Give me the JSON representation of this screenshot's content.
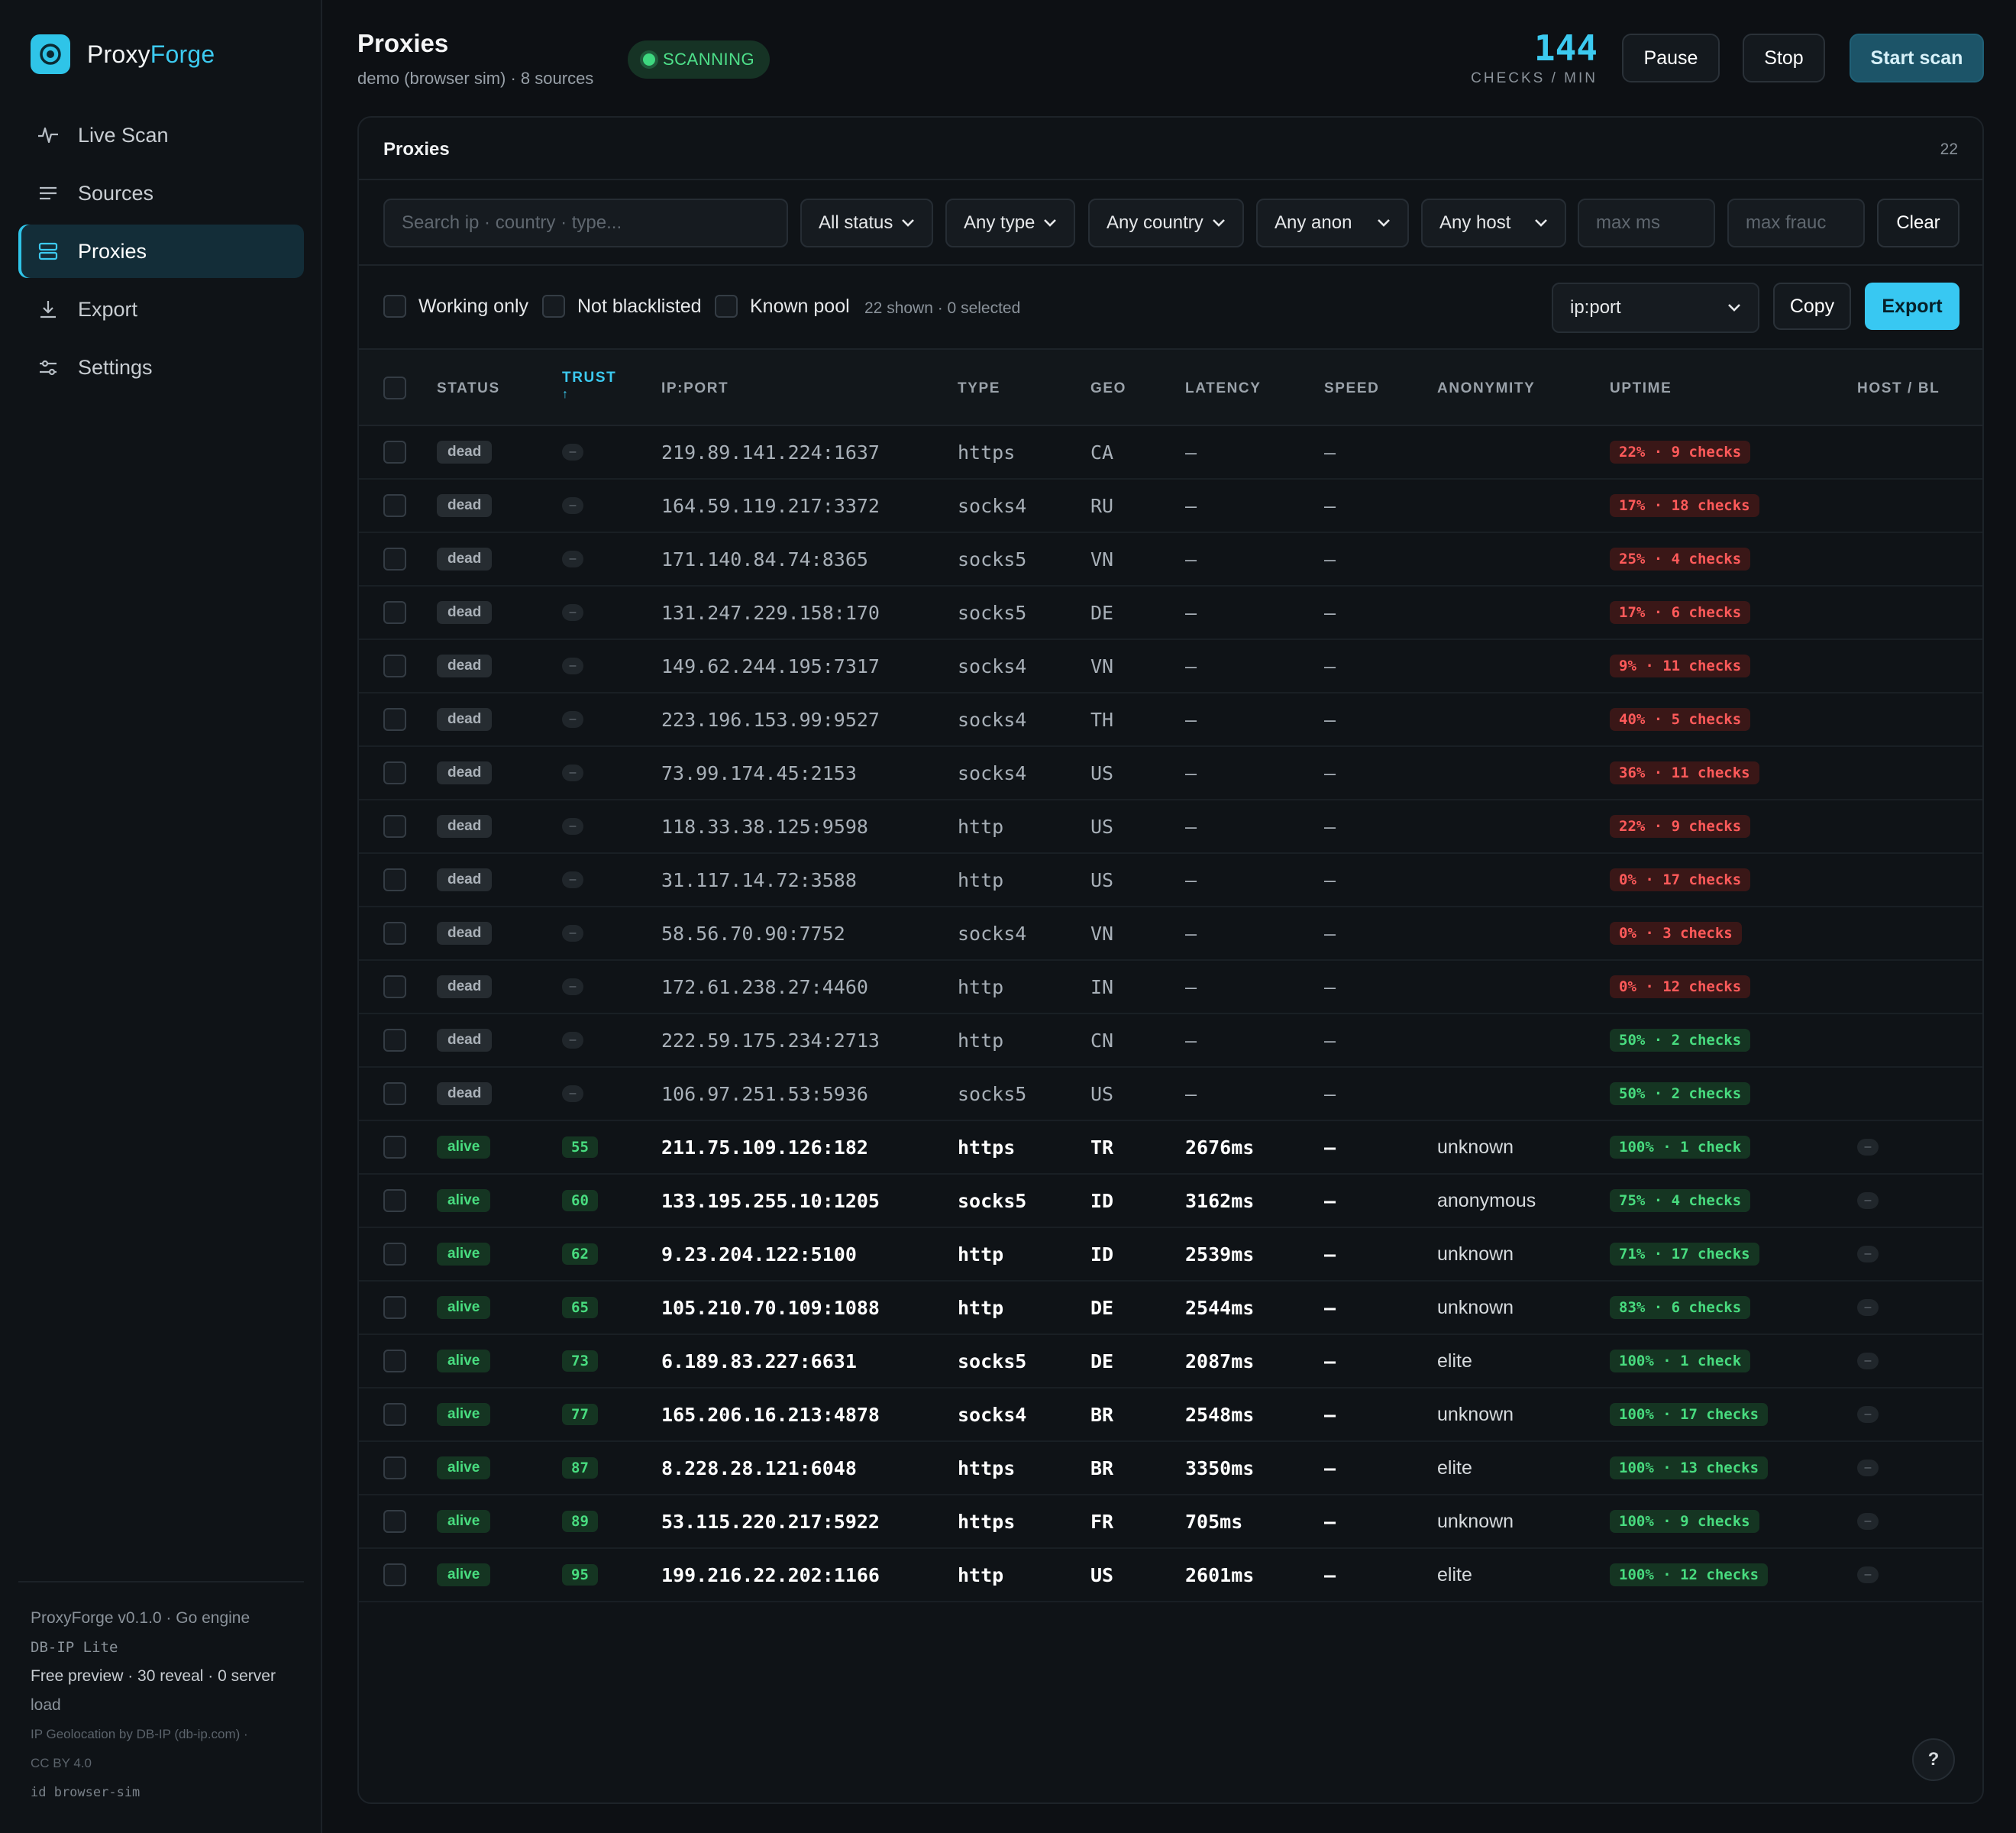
{
  "brand": {
    "name_prefix": "Proxy",
    "name_accent": "Forge"
  },
  "nav": [
    {
      "label": "Live Scan",
      "icon": "pulse-icon",
      "active": false
    },
    {
      "label": "Sources",
      "icon": "list-icon",
      "active": false
    },
    {
      "label": "Proxies",
      "icon": "server-icon",
      "active": true
    },
    {
      "label": "Export",
      "icon": "download-icon",
      "active": false
    },
    {
      "label": "Settings",
      "icon": "sliders-icon",
      "active": false
    }
  ],
  "footer": {
    "version": "ProxyForge v0.1.0 · Go engine",
    "db": "DB-IP Lite",
    "preview": "Free preview · 30 reveal · 0 server",
    "preview_cont": "load",
    "attribution": "IP Geolocation by DB-IP (db-ip.com) ·",
    "license": "CC BY 4.0",
    "id": "id browser-sim"
  },
  "header": {
    "title": "Proxies",
    "subtitle": "demo (browser sim) · 8 sources",
    "status": "SCANNING",
    "rate_value": "144",
    "rate_label": "CHECKS / MIN",
    "pause": "Pause",
    "stop": "Stop",
    "start": "Start scan"
  },
  "panel": {
    "title": "Proxies",
    "count": "22"
  },
  "filters": {
    "search_placeholder": "Search ip · country · type...",
    "status": "All status",
    "type": "Any type",
    "country": "Any country",
    "anon": "Any anon",
    "host": "Any host",
    "max_ms_placeholder": "max ms",
    "max_fraud_placeholder": "max frauc",
    "clear": "Clear"
  },
  "options": {
    "working_only": "Working only",
    "not_blacklisted": "Not blacklisted",
    "known_pool": "Known pool",
    "summary": "22 shown · 0 selected",
    "format": "ip:port",
    "copy": "Copy",
    "export": "Export"
  },
  "columns": {
    "status": "STATUS",
    "trust": "TRUST",
    "sort_arrow": "↑",
    "ip": "IP:PORT",
    "type": "TYPE",
    "geo": "GEO",
    "latency": "LATENCY",
    "speed": "SPEED",
    "anonymity": "ANONYMITY",
    "uptime": "UPTIME",
    "host": "HOST / BL"
  },
  "rows": [
    {
      "status": "dead",
      "trust": "–",
      "ip": "219.89.141.224:1637",
      "type": "https",
      "geo": "CA",
      "latency": "–",
      "speed": "–",
      "anon": "",
      "uptime": "22% · 9 checks",
      "up_good": false,
      "host": ""
    },
    {
      "status": "dead",
      "trust": "–",
      "ip": "164.59.119.217:3372",
      "type": "socks4",
      "geo": "RU",
      "latency": "–",
      "speed": "–",
      "anon": "",
      "uptime": "17% · 18 checks",
      "up_good": false,
      "host": ""
    },
    {
      "status": "dead",
      "trust": "–",
      "ip": "171.140.84.74:8365",
      "type": "socks5",
      "geo": "VN",
      "latency": "–",
      "speed": "–",
      "anon": "",
      "uptime": "25% · 4 checks",
      "up_good": false,
      "host": ""
    },
    {
      "status": "dead",
      "trust": "–",
      "ip": "131.247.229.158:170",
      "type": "socks5",
      "geo": "DE",
      "latency": "–",
      "speed": "–",
      "anon": "",
      "uptime": "17% · 6 checks",
      "up_good": false,
      "host": ""
    },
    {
      "status": "dead",
      "trust": "–",
      "ip": "149.62.244.195:7317",
      "type": "socks4",
      "geo": "VN",
      "latency": "–",
      "speed": "–",
      "anon": "",
      "uptime": "9% · 11 checks",
      "up_good": false,
      "host": ""
    },
    {
      "status": "dead",
      "trust": "–",
      "ip": "223.196.153.99:9527",
      "type": "socks4",
      "geo": "TH",
      "latency": "–",
      "speed": "–",
      "anon": "",
      "uptime": "40% · 5 checks",
      "up_good": false,
      "host": ""
    },
    {
      "status": "dead",
      "trust": "–",
      "ip": "73.99.174.45:2153",
      "type": "socks4",
      "geo": "US",
      "latency": "–",
      "speed": "–",
      "anon": "",
      "uptime": "36% · 11 checks",
      "up_good": false,
      "host": ""
    },
    {
      "status": "dead",
      "trust": "–",
      "ip": "118.33.38.125:9598",
      "type": "http",
      "geo": "US",
      "latency": "–",
      "speed": "–",
      "anon": "",
      "uptime": "22% · 9 checks",
      "up_good": false,
      "host": ""
    },
    {
      "status": "dead",
      "trust": "–",
      "ip": "31.117.14.72:3588",
      "type": "http",
      "geo": "US",
      "latency": "–",
      "speed": "–",
      "anon": "",
      "uptime": "0% · 17 checks",
      "up_good": false,
      "host": ""
    },
    {
      "status": "dead",
      "trust": "–",
      "ip": "58.56.70.90:7752",
      "type": "socks4",
      "geo": "VN",
      "latency": "–",
      "speed": "–",
      "anon": "",
      "uptime": "0% · 3 checks",
      "up_good": false,
      "host": ""
    },
    {
      "status": "dead",
      "trust": "–",
      "ip": "172.61.238.27:4460",
      "type": "http",
      "geo": "IN",
      "latency": "–",
      "speed": "–",
      "anon": "",
      "uptime": "0% · 12 checks",
      "up_good": false,
      "host": ""
    },
    {
      "status": "dead",
      "trust": "–",
      "ip": "222.59.175.234:2713",
      "type": "http",
      "geo": "CN",
      "latency": "–",
      "speed": "–",
      "anon": "",
      "uptime": "50% · 2 checks",
      "up_good": true,
      "host": ""
    },
    {
      "status": "dead",
      "trust": "–",
      "ip": "106.97.251.53:5936",
      "type": "socks5",
      "geo": "US",
      "latency": "–",
      "speed": "–",
      "anon": "",
      "uptime": "50% · 2 checks",
      "up_good": true,
      "host": ""
    },
    {
      "status": "alive",
      "trust": "55",
      "ip": "211.75.109.126:182",
      "type": "https",
      "geo": "TR",
      "latency": "2676ms",
      "speed": "–",
      "anon": "unknown",
      "uptime": "100% · 1 check",
      "up_good": true,
      "host": "–"
    },
    {
      "status": "alive",
      "trust": "60",
      "ip": "133.195.255.10:1205",
      "type": "socks5",
      "geo": "ID",
      "latency": "3162ms",
      "speed": "–",
      "anon": "anonymous",
      "uptime": "75% · 4 checks",
      "up_good": true,
      "host": "–"
    },
    {
      "status": "alive",
      "trust": "62",
      "ip": "9.23.204.122:5100",
      "type": "http",
      "geo": "ID",
      "latency": "2539ms",
      "speed": "–",
      "anon": "unknown",
      "uptime": "71% · 17 checks",
      "up_good": true,
      "host": "–"
    },
    {
      "status": "alive",
      "trust": "65",
      "ip": "105.210.70.109:1088",
      "type": "http",
      "geo": "DE",
      "latency": "2544ms",
      "speed": "–",
      "anon": "unknown",
      "uptime": "83% · 6 checks",
      "up_good": true,
      "host": "–"
    },
    {
      "status": "alive",
      "trust": "73",
      "ip": "6.189.83.227:6631",
      "type": "socks5",
      "geo": "DE",
      "latency": "2087ms",
      "speed": "–",
      "anon": "elite",
      "uptime": "100% · 1 check",
      "up_good": true,
      "host": "–"
    },
    {
      "status": "alive",
      "trust": "77",
      "ip": "165.206.16.213:4878",
      "type": "socks4",
      "geo": "BR",
      "latency": "2548ms",
      "speed": "–",
      "anon": "unknown",
      "uptime": "100% · 17 checks",
      "up_good": true,
      "host": "–"
    },
    {
      "status": "alive",
      "trust": "87",
      "ip": "8.228.28.121:6048",
      "type": "https",
      "geo": "BR",
      "latency": "3350ms",
      "speed": "–",
      "anon": "elite",
      "uptime": "100% · 13 checks",
      "up_good": true,
      "host": "–"
    },
    {
      "status": "alive",
      "trust": "89",
      "ip": "53.115.220.217:5922",
      "type": "https",
      "geo": "FR",
      "latency": "705ms",
      "speed": "–",
      "anon": "unknown",
      "uptime": "100% · 9 checks",
      "up_good": true,
      "host": "–"
    },
    {
      "status": "alive",
      "trust": "95",
      "ip": "199.216.22.202:1166",
      "type": "http",
      "geo": "US",
      "latency": "2601ms",
      "speed": "–",
      "anon": "elite",
      "uptime": "100% · 12 checks",
      "up_good": true,
      "host": "–"
    }
  ],
  "help": "?"
}
